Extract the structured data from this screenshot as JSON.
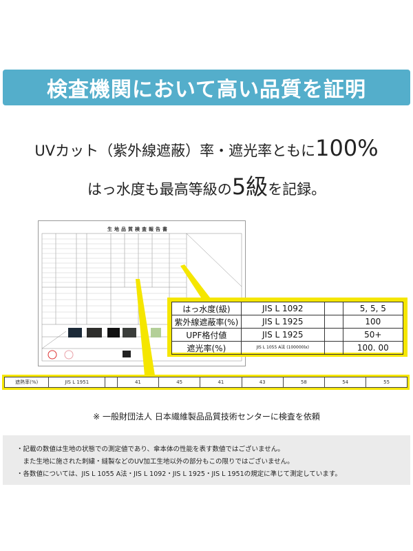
{
  "header": {
    "title": "検査機関において高い品質を証明",
    "band_color": "#54aecb"
  },
  "lead": {
    "line1_text": "UVカット（紫外線遮蔽）率・遮光率ともに",
    "line1_emphasis": "100%",
    "line2_prefix": "はっ水度も最高等級の",
    "line2_emphasis": "5級",
    "line2_suffix": "を記録。"
  },
  "document": {
    "title": "生地品質検査報告書"
  },
  "callout": {
    "highlight_color": "#f5e600",
    "rows": [
      {
        "item": "はっ水度(級)",
        "method": "JIS L 1092",
        "blank": "",
        "value": "5, 5, 5"
      },
      {
        "item": "紫外線遮蔽率(%)",
        "method": "JIS L 1925",
        "blank": "",
        "value": "100"
      },
      {
        "item": "UPF格付値",
        "method": "JIS L 1925",
        "blank": "",
        "value": "50+"
      },
      {
        "item": "遮光率(%)",
        "method": "JIS L 1055 A法 (100000lx)",
        "blank": "",
        "value": "100. 00"
      }
    ]
  },
  "strip": {
    "item": "遮熱率(%)",
    "method": "JIS L 1951",
    "values": [
      "41",
      "45",
      "41",
      "43",
      "58",
      "54",
      "55"
    ]
  },
  "footnote": "※ 一般財団法人 日本繊維製品品質技術センターに検査を依頼",
  "notes": [
    "・記載の数値は生地の状態での測定値であり、傘本体の性能を表す数値ではございません。",
    "　また生地に施された刺繍・縫製などのUV加工生地以外の部分もこの限りではございません。",
    "・各数値については、JIS L 1055 A法・JIS L 1092・JIS L 1925・JIS L 1951の規定に準じて測定しています。"
  ]
}
